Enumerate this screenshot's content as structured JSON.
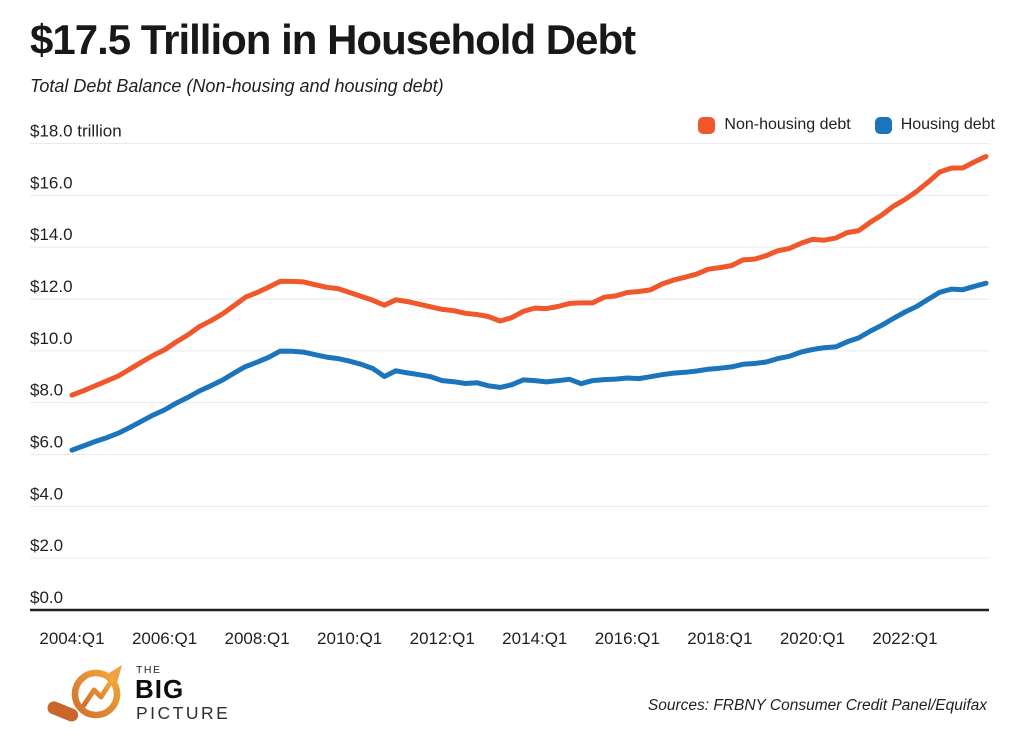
{
  "header": {
    "title": "$17.5 Trillion in Household Debt",
    "subtitle": "Total Debt Balance (Non-housing and housing debt)"
  },
  "legend": {
    "items": [
      {
        "label": "Non-housing debt",
        "color": "#F0572B"
      },
      {
        "label": "Housing debt",
        "color": "#1B75BC"
      }
    ]
  },
  "footer": {
    "logo": {
      "line1": "THE",
      "line2": "BIG",
      "line3": "PICTURE"
    },
    "source": "Sources: FRBNY Consumer Credit Panel/Equifax"
  },
  "colors": {
    "non_housing": "#F0572B",
    "housing": "#1B75BC",
    "grid": "#EAEAEA",
    "axis": "#231F20",
    "text": "#231F20",
    "logo_orange_dark": "#C9662B",
    "logo_orange_light": "#F2A93B"
  },
  "chart_data": {
    "type": "line",
    "title": "$17.5 Trillion in Household Debt",
    "subtitle": "Total Debt Balance (Non-housing and housing debt)",
    "x_frequency": "quarterly",
    "grid": true,
    "legend_position": "top-right",
    "categories": [
      "2004:Q1",
      "2004:Q2",
      "2004:Q3",
      "2004:Q4",
      "2005:Q1",
      "2005:Q2",
      "2005:Q3",
      "2005:Q4",
      "2006:Q1",
      "2006:Q2",
      "2006:Q3",
      "2006:Q4",
      "2007:Q1",
      "2007:Q2",
      "2007:Q3",
      "2007:Q4",
      "2008:Q1",
      "2008:Q2",
      "2008:Q3",
      "2008:Q4",
      "2009:Q1",
      "2009:Q2",
      "2009:Q3",
      "2009:Q4",
      "2010:Q1",
      "2010:Q2",
      "2010:Q3",
      "2010:Q4",
      "2011:Q1",
      "2011:Q2",
      "2011:Q3",
      "2011:Q4",
      "2012:Q1",
      "2012:Q2",
      "2012:Q3",
      "2012:Q4",
      "2013:Q1",
      "2013:Q2",
      "2013:Q3",
      "2013:Q4",
      "2014:Q1",
      "2014:Q2",
      "2014:Q3",
      "2014:Q4",
      "2015:Q1",
      "2015:Q2",
      "2015:Q3",
      "2015:Q4",
      "2016:Q1",
      "2016:Q2",
      "2016:Q3",
      "2016:Q4",
      "2017:Q1",
      "2017:Q2",
      "2017:Q3",
      "2017:Q4",
      "2018:Q1",
      "2018:Q2",
      "2018:Q3",
      "2018:Q4",
      "2019:Q1",
      "2019:Q2",
      "2019:Q3",
      "2019:Q4",
      "2020:Q1",
      "2020:Q2",
      "2020:Q3",
      "2020:Q4",
      "2021:Q1",
      "2021:Q2",
      "2021:Q3",
      "2021:Q4",
      "2022:Q1",
      "2022:Q2",
      "2022:Q3",
      "2022:Q4",
      "2023:Q1",
      "2023:Q2",
      "2023:Q3",
      "2023:Q4"
    ],
    "series": [
      {
        "name": "Non-housing debt",
        "color": "#F0572B",
        "values": [
          8.29,
          8.46,
          8.65,
          8.84,
          9.03,
          9.29,
          9.56,
          9.82,
          10.04,
          10.34,
          10.61,
          10.93,
          11.16,
          11.42,
          11.74,
          12.07,
          12.25,
          12.46,
          12.68,
          12.68,
          12.66,
          12.55,
          12.45,
          12.4,
          12.25,
          12.1,
          11.95,
          11.76,
          11.97,
          11.9,
          11.8,
          11.7,
          11.6,
          11.55,
          11.45,
          11.4,
          11.32,
          11.15,
          11.28,
          11.52,
          11.65,
          11.63,
          11.71,
          11.83,
          11.85,
          11.85,
          12.07,
          12.12,
          12.25,
          12.29,
          12.35,
          12.58,
          12.73,
          12.84,
          12.96,
          13.15,
          13.21,
          13.29,
          13.51,
          13.54,
          13.67,
          13.86,
          13.95,
          14.15,
          14.3,
          14.27,
          14.35,
          14.56,
          14.64,
          14.96,
          15.24,
          15.58,
          15.84,
          16.15,
          16.51,
          16.9,
          17.05,
          17.06,
          17.29,
          17.5
        ]
      },
      {
        "name": "Housing debt",
        "color": "#1B75BC",
        "values": [
          6.17,
          6.33,
          6.5,
          6.65,
          6.82,
          7.04,
          7.28,
          7.52,
          7.72,
          7.98,
          8.2,
          8.45,
          8.65,
          8.87,
          9.14,
          9.39,
          9.56,
          9.75,
          9.99,
          9.98,
          9.95,
          9.85,
          9.76,
          9.7,
          9.6,
          9.48,
          9.32,
          9.01,
          9.23,
          9.15,
          9.08,
          9.0,
          8.85,
          8.81,
          8.74,
          8.77,
          8.65,
          8.59,
          8.69,
          8.88,
          8.85,
          8.8,
          8.85,
          8.9,
          8.73,
          8.85,
          8.89,
          8.91,
          8.95,
          8.93,
          9.0,
          9.08,
          9.14,
          9.17,
          9.22,
          9.29,
          9.33,
          9.38,
          9.48,
          9.51,
          9.57,
          9.7,
          9.79,
          9.95,
          10.05,
          10.12,
          10.15,
          10.35,
          10.5,
          10.76,
          10.99,
          11.25,
          11.5,
          11.71,
          11.99,
          12.26,
          12.38,
          12.36,
          12.49,
          12.61
        ]
      }
    ],
    "y_axis": {
      "range": [
        0,
        18
      ],
      "ticks": [
        {
          "v": 0,
          "label": "$0.0"
        },
        {
          "v": 2,
          "label": "$2.0"
        },
        {
          "v": 4,
          "label": "$4.0"
        },
        {
          "v": 6,
          "label": "$6.0"
        },
        {
          "v": 8,
          "label": "$8.0"
        },
        {
          "v": 10,
          "label": "$10.0"
        },
        {
          "v": 12,
          "label": "$12.0"
        },
        {
          "v": 14,
          "label": "$14.0"
        },
        {
          "v": 16,
          "label": "$16.0"
        },
        {
          "v": 18,
          "label": "$18.0 trillion"
        }
      ]
    },
    "x_axis": {
      "tick_indices": [
        0,
        8,
        16,
        24,
        32,
        40,
        48,
        56,
        64,
        72
      ],
      "tick_labels": [
        "2004:Q1",
        "2006:Q1",
        "2008:Q1",
        "2010:Q1",
        "2012:Q1",
        "2014:Q1",
        "2016:Q1",
        "2018:Q1",
        "2020:Q1",
        "2022:Q1"
      ]
    }
  }
}
